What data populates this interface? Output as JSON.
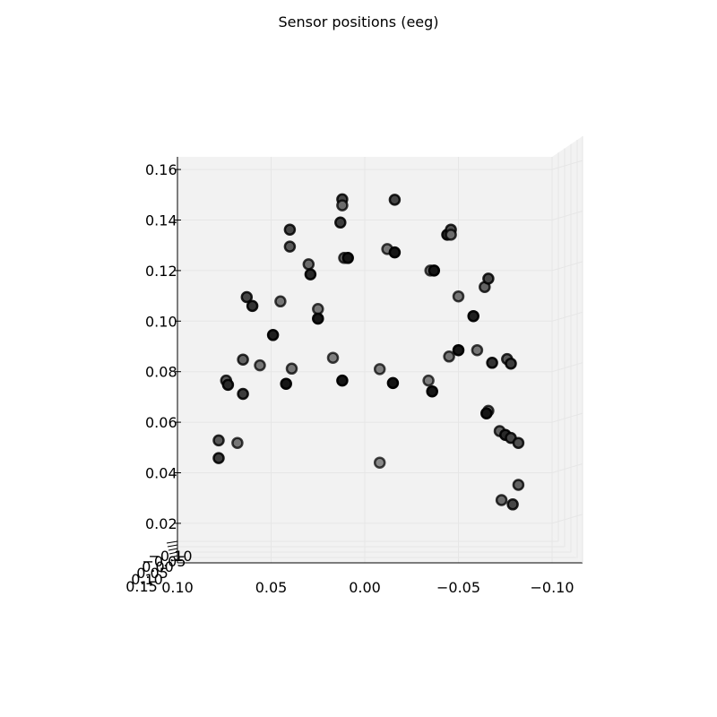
{
  "chart_data": {
    "type": "scatter",
    "title": "Sensor positions (eeg)",
    "xlabel": "",
    "ylabel": "",
    "xlim": [
      0.1,
      -0.1
    ],
    "ylim": [
      0.015,
      0.165
    ],
    "x_ticks": [
      "0.10",
      "0.05",
      "0.00",
      "−0.05",
      "−0.10"
    ],
    "y_ticks": [
      "0.02",
      "0.04",
      "0.06",
      "0.08",
      "0.10",
      "0.12",
      "0.14",
      "0.16"
    ],
    "y_tick_values": [
      0.02,
      0.04,
      0.06,
      0.08,
      0.1,
      0.12,
      0.14,
      0.16
    ],
    "depth_tick_labels": [
      "0.15",
      "0.10",
      "0.05",
      "0.00",
      "−0.05",
      "−0.10"
    ],
    "grid": true,
    "colors": {
      "pane": "#f2f2f2",
      "grid": "#e6e6e6",
      "marker_edge": "#000000"
    },
    "points": [
      {
        "x": 0.078,
        "y": 0.0528,
        "shade": 0.4
      },
      {
        "x": 0.078,
        "y": 0.0458,
        "shade": 0.25
      },
      {
        "x": 0.068,
        "y": 0.0518,
        "shade": 0.55
      },
      {
        "x": 0.074,
        "y": 0.0765,
        "shade": 0.4
      },
      {
        "x": 0.073,
        "y": 0.0748,
        "shade": 0.15
      },
      {
        "x": 0.065,
        "y": 0.0712,
        "shade": 0.25
      },
      {
        "x": 0.065,
        "y": 0.0848,
        "shade": 0.45
      },
      {
        "x": 0.056,
        "y": 0.0825,
        "shade": 0.55
      },
      {
        "x": 0.063,
        "y": 0.1095,
        "shade": 0.3
      },
      {
        "x": 0.06,
        "y": 0.106,
        "shade": 0.2
      },
      {
        "x": 0.045,
        "y": 0.1078,
        "shade": 0.55
      },
      {
        "x": 0.049,
        "y": 0.0945,
        "shade": 0.1
      },
      {
        "x": 0.042,
        "y": 0.0752,
        "shade": 0.05
      },
      {
        "x": 0.039,
        "y": 0.0812,
        "shade": 0.55
      },
      {
        "x": 0.04,
        "y": 0.1362,
        "shade": 0.3
      },
      {
        "x": 0.04,
        "y": 0.1295,
        "shade": 0.4
      },
      {
        "x": 0.03,
        "y": 0.1225,
        "shade": 0.5
      },
      {
        "x": 0.029,
        "y": 0.1185,
        "shade": 0.15
      },
      {
        "x": 0.025,
        "y": 0.1048,
        "shade": 0.55
      },
      {
        "x": 0.025,
        "y": 0.101,
        "shade": 0.05
      },
      {
        "x": 0.017,
        "y": 0.0855,
        "shade": 0.6
      },
      {
        "x": 0.012,
        "y": 0.0765,
        "shade": 0.05
      },
      {
        "x": 0.012,
        "y": 0.1482,
        "shade": 0.3
      },
      {
        "x": 0.012,
        "y": 0.1458,
        "shade": 0.5
      },
      {
        "x": 0.013,
        "y": 0.139,
        "shade": 0.25
      },
      {
        "x": 0.011,
        "y": 0.125,
        "shade": 0.5
      },
      {
        "x": 0.009,
        "y": 0.125,
        "shade": 0.05
      },
      {
        "x": -0.008,
        "y": 0.081,
        "shade": 0.6
      },
      {
        "x": -0.008,
        "y": 0.044,
        "shade": 0.65
      },
      {
        "x": -0.012,
        "y": 0.1285,
        "shade": 0.55
      },
      {
        "x": -0.016,
        "y": 0.148,
        "shade": 0.3
      },
      {
        "x": -0.016,
        "y": 0.1272,
        "shade": 0.05
      },
      {
        "x": -0.015,
        "y": 0.0755,
        "shade": 0.05
      },
      {
        "x": -0.034,
        "y": 0.0765,
        "shade": 0.6
      },
      {
        "x": -0.036,
        "y": 0.0722,
        "shade": 0.05
      },
      {
        "x": -0.035,
        "y": 0.12,
        "shade": 0.55
      },
      {
        "x": -0.037,
        "y": 0.12,
        "shade": 0.05
      },
      {
        "x": -0.044,
        "y": 0.1342,
        "shade": 0.15
      },
      {
        "x": -0.046,
        "y": 0.1362,
        "shade": 0.35
      },
      {
        "x": -0.046,
        "y": 0.1342,
        "shade": 0.5
      },
      {
        "x": -0.045,
        "y": 0.086,
        "shade": 0.55
      },
      {
        "x": -0.05,
        "y": 0.1098,
        "shade": 0.55
      },
      {
        "x": -0.05,
        "y": 0.0885,
        "shade": 0.05
      },
      {
        "x": -0.058,
        "y": 0.102,
        "shade": 0.1
      },
      {
        "x": -0.06,
        "y": 0.0885,
        "shade": 0.55
      },
      {
        "x": -0.064,
        "y": 0.1135,
        "shade": 0.45
      },
      {
        "x": -0.066,
        "y": 0.1168,
        "shade": 0.3
      },
      {
        "x": -0.066,
        "y": 0.0645,
        "shade": 0.5
      },
      {
        "x": -0.065,
        "y": 0.0635,
        "shade": 0.05
      },
      {
        "x": -0.068,
        "y": 0.0835,
        "shade": 0.2
      },
      {
        "x": -0.076,
        "y": 0.085,
        "shade": 0.4
      },
      {
        "x": -0.078,
        "y": 0.0832,
        "shade": 0.25
      },
      {
        "x": -0.072,
        "y": 0.0565,
        "shade": 0.45
      },
      {
        "x": -0.075,
        "y": 0.055,
        "shade": 0.15
      },
      {
        "x": -0.078,
        "y": 0.0538,
        "shade": 0.3
      },
      {
        "x": -0.082,
        "y": 0.0518,
        "shade": 0.35
      },
      {
        "x": -0.082,
        "y": 0.0352,
        "shade": 0.45
      },
      {
        "x": -0.073,
        "y": 0.0292,
        "shade": 0.5
      },
      {
        "x": -0.079,
        "y": 0.0275,
        "shade": 0.3
      }
    ]
  }
}
